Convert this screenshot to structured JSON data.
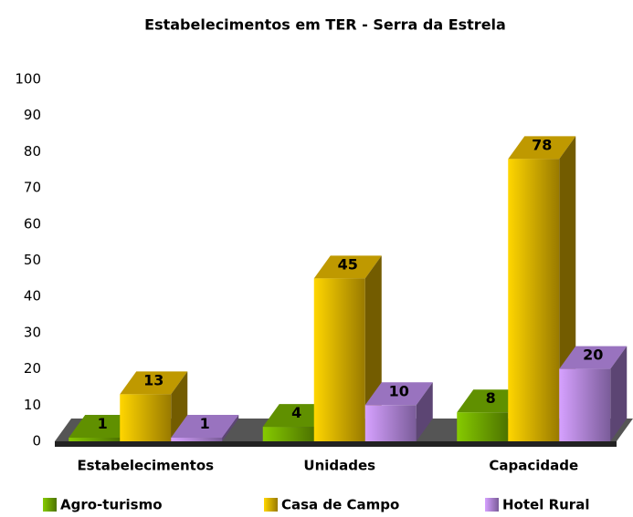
{
  "chart_data": {
    "type": "bar3d",
    "title": "Estabelecimentos em TER - Serra da Estrela",
    "categories": [
      "Estabelecimentos",
      "Unidades",
      "Capacidade"
    ],
    "series": [
      {
        "name": "Agro-turismo",
        "color": "#80c000",
        "values": [
          1,
          4,
          8
        ]
      },
      {
        "name": "Casa de Campo",
        "color": "#ffcc00",
        "values": [
          13,
          45,
          78
        ]
      },
      {
        "name": "Hotel Rural",
        "color": "#cc99ff",
        "values": [
          1,
          10,
          20
        ]
      }
    ],
    "ylim": [
      0,
      100
    ],
    "yticks": [
      0,
      10,
      20,
      30,
      40,
      50,
      60,
      70,
      80,
      90,
      100
    ],
    "legend": "bottom"
  }
}
